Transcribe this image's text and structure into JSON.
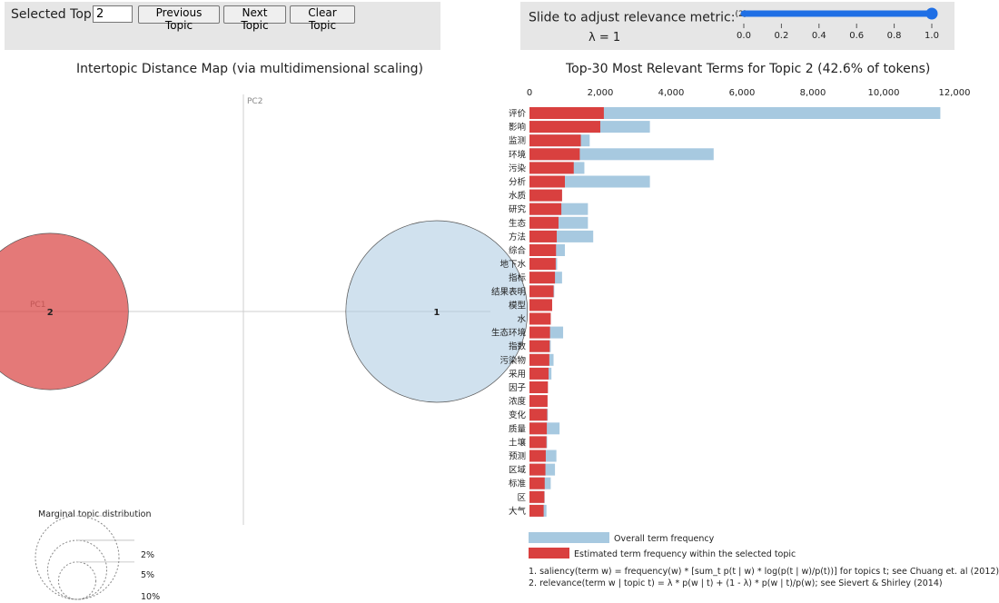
{
  "controls": {
    "selected_topic_label": "Selected Topic:",
    "selected_topic_value": "2",
    "prev_label": "Previous Topic",
    "next_label": "Next Topic",
    "clear_label": "Clear Topic"
  },
  "relevance": {
    "slider_label": "Slide to adjust relevance metric:",
    "slider_note": "(2)",
    "lambda_text": "λ = 1",
    "lambda_value": 1.0,
    "ticks": [
      "0.0",
      "0.2",
      "0.4",
      "0.6",
      "0.8",
      "1.0"
    ],
    "accent": "#1f6fe5"
  },
  "chart_data": [
    {
      "type": "scatter",
      "title": "Intertopic Distance Map (via multidimensional scaling)",
      "xlabel": "PC1",
      "ylabel": "PC2",
      "topics": [
        {
          "label": "1",
          "pc1": 0.14,
          "pc2": 0.0,
          "share": 57.4,
          "color": "#aac9e0"
        },
        {
          "label": "2",
          "pc1": -0.14,
          "pc2": 0.0,
          "share": 42.6,
          "color": "#d9403f",
          "selected": true
        }
      ],
      "marginal": {
        "title": "Marginal topic distribution",
        "legend": [
          "2%",
          "5%",
          "10%"
        ],
        "values": [
          2,
          5,
          10
        ]
      }
    },
    {
      "type": "bar",
      "title": "Top-30 Most Relevant Terms for Topic 2 (42.6% of tokens)",
      "xlim": [
        0,
        12000
      ],
      "ticks": [
        "0",
        "2,000",
        "4,000",
        "6,000",
        "8,000",
        "10,000",
        "12,000"
      ],
      "categories": [
        "评价",
        "影响",
        "监测",
        "环境",
        "污染",
        "分析",
        "水质",
        "研究",
        "生态",
        "方法",
        "综合",
        "地下水",
        "指标",
        "结果表明",
        "模型",
        "水",
        "生态环境",
        "指数",
        "污染物",
        "采用",
        "因子",
        "浓度",
        "变化",
        "质量",
        "土壤",
        "预测",
        "区域",
        "标准",
        "区",
        "大气"
      ],
      "series": [
        {
          "name": "Overall term frequency",
          "color": "#a7c9e0",
          "values": [
            11600,
            3400,
            1700,
            5200,
            1550,
            3400,
            920,
            1650,
            1650,
            1800,
            1000,
            780,
            920,
            700,
            640,
            600,
            950,
            600,
            680,
            620,
            520,
            510,
            520,
            850,
            500,
            760,
            720,
            600,
            430,
            480
          ]
        },
        {
          "name": "Estimated term frequency within the selected topic",
          "color": "#d9403f",
          "values": [
            2100,
            2000,
            1450,
            1420,
            1250,
            1000,
            920,
            900,
            820,
            770,
            750,
            740,
            720,
            680,
            640,
            600,
            580,
            570,
            560,
            540,
            520,
            510,
            500,
            490,
            480,
            460,
            450,
            430,
            420,
            400
          ]
        }
      ],
      "footnotes": [
        "1. saliency(term w) = frequency(w) * [sum_t p(t | w) * log(p(t | w)/p(t))] for topics t; see Chuang et. al (2012)",
        "2. relevance(term w | topic t) = λ * p(w | t) + (1 - λ) * p(w | t)/p(w); see Sievert & Shirley (2014)"
      ]
    }
  ]
}
